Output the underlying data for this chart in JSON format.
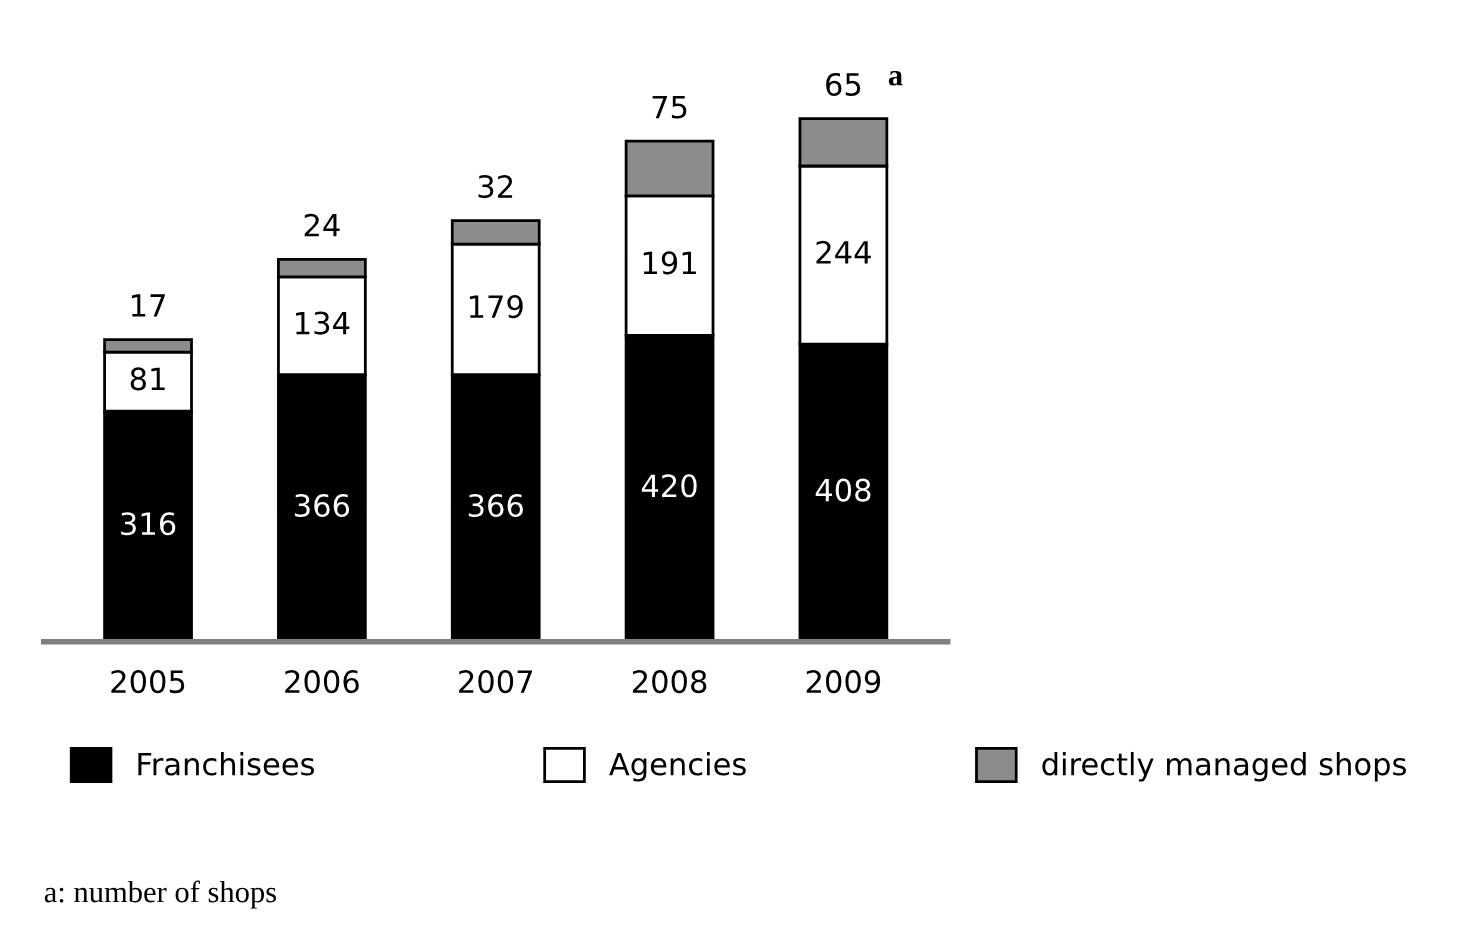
{
  "chart_data": {
    "type": "bar",
    "stacked": true,
    "categories": [
      "2005",
      "2006",
      "2007",
      "2008",
      "2009"
    ],
    "series": [
      {
        "name": "Franchisees",
        "color": "#000000",
        "values": [
          316,
          366,
          366,
          420,
          408
        ]
      },
      {
        "name": "Agencies",
        "color": "#ffffff",
        "values": [
          81,
          134,
          179,
          191,
          244
        ]
      },
      {
        "name": "directly managed shops",
        "color": "#8c8c8c",
        "values": [
          17,
          24,
          32,
          75,
          65
        ]
      }
    ],
    "data_labels": true,
    "legend": "bottom",
    "tick_labels": "x",
    "grid": false,
    "annotations": [
      {
        "text": "a",
        "x": "2009",
        "y": 717
      },
      "a: number of shops"
    ]
  }
}
